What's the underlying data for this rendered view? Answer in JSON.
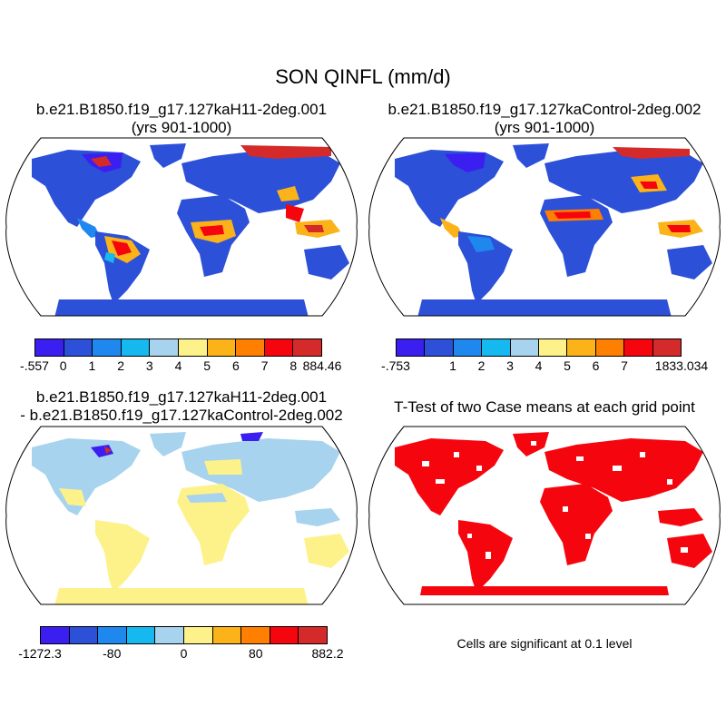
{
  "title": "SON QINFL (mm/d)",
  "panels": [
    {
      "name": "p1",
      "title_line1": "b.e21.B1850.f19_g17.127kaH11-2deg.001",
      "title_line2": "(yrs 901-1000)"
    },
    {
      "name": "p2",
      "title_line1": "b.e21.B1850.f19_g17.127kaControl-2deg.002",
      "title_line2": "(yrs 901-1000)"
    },
    {
      "name": "p3",
      "title_line1": "b.e21.B1850.f19_g17.127kaH11-2deg.001",
      "title_line2": "- b.e21.B1850.f19_g17.127kaControl-2deg.002"
    },
    {
      "name": "p4",
      "title_line1": "T-Test of two Case means at each grid point",
      "title_line2": ""
    }
  ],
  "colorbar1": {
    "colors": [
      "#3a1ff0",
      "#2c50d8",
      "#1f88ee",
      "#15b9ef",
      "#a7d3ee",
      "#fdf28a",
      "#fcb319",
      "#ff7f00",
      "#f5060f",
      "#d42a2a"
    ],
    "labels": [
      "-.557",
      "0",
      "1",
      "2",
      "3",
      "4",
      "5",
      "6",
      "7",
      "8",
      "884.46"
    ]
  },
  "colorbar2": {
    "colors": [
      "#3a1ff0",
      "#2c50d8",
      "#1f88ee",
      "#15b9ef",
      "#a7d3ee",
      "#fdf28a",
      "#fcb319",
      "#ff7f00",
      "#f5060f",
      "#d42a2a"
    ],
    "labels": [
      "-.753",
      "",
      "1",
      "2",
      "3",
      "4",
      "5",
      "6",
      "7",
      "",
      "1833.034"
    ]
  },
  "colorbar3": {
    "colors": [
      "#3a1ff0",
      "#2c50d8",
      "#1f88ee",
      "#15b9ef",
      "#a7d3ee",
      "#fdf28a",
      "#fcb319",
      "#ff7f00",
      "#f5060f",
      "#d42a2a"
    ],
    "labels": [
      "-1272.3",
      "",
      "-80",
      "",
      "0",
      "",
      "80",
      "",
      "882.2"
    ]
  },
  "significance_note": "Cells are significant at 0.1 level"
}
